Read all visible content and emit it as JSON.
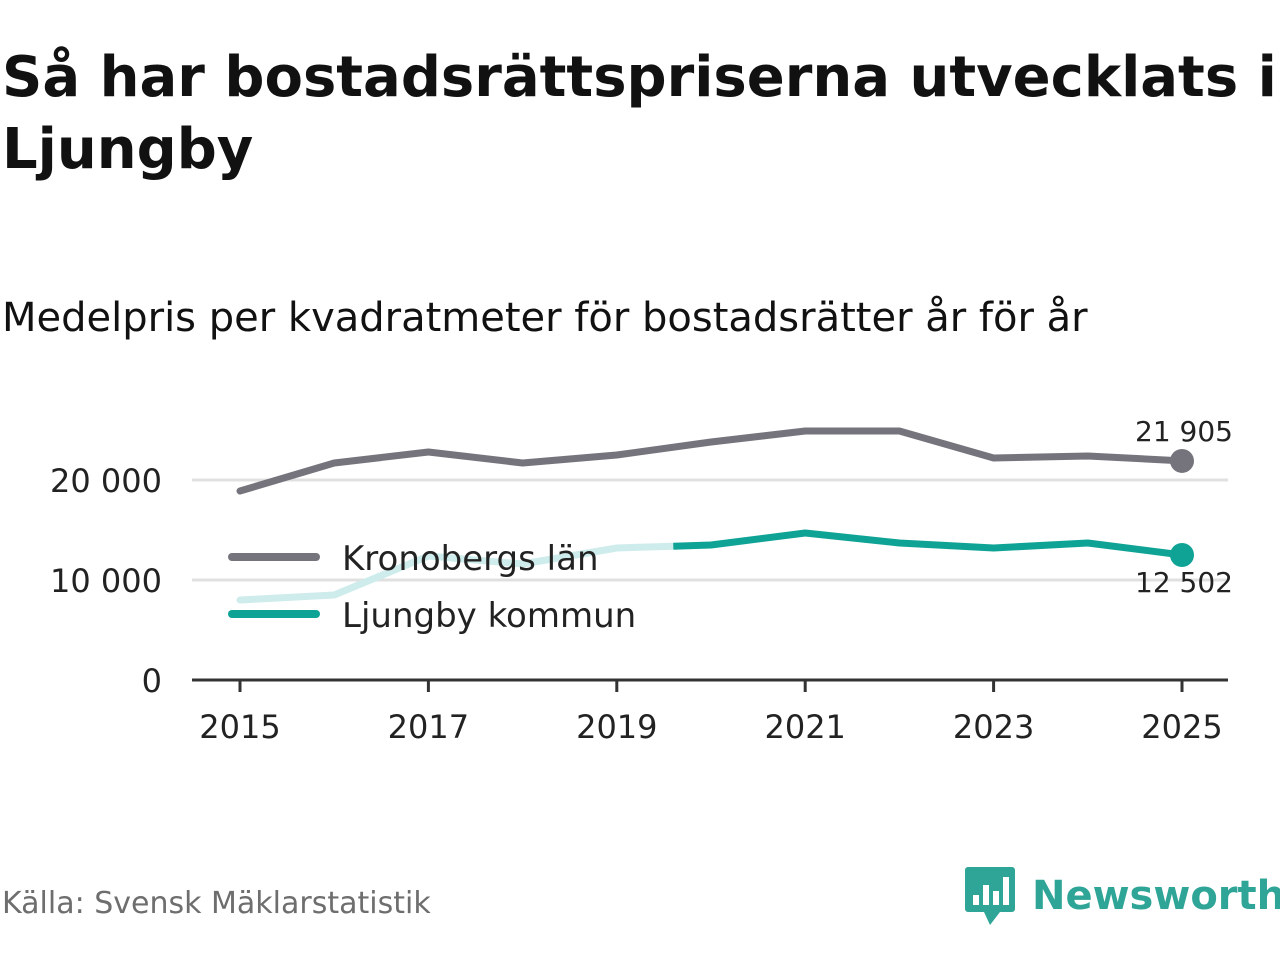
{
  "title": "Så har bostadsrättspriserna utvecklats i Ljungby",
  "subtitle": "Medelpris per kvadratmeter för bostadsrätter år för år",
  "source": "Källa: Svensk Mäklarstatistik",
  "brand": "Newsworthy",
  "colors": {
    "lan": "#75747d",
    "kommun": "#0fa396",
    "kommun_faded": "#cdeceb",
    "grid": "#e0e0e0",
    "axis": "#333333",
    "brand": "#2fa597"
  },
  "chart_data": {
    "type": "line",
    "title": "Så har bostadsrättspriserna utvecklats i Ljungby",
    "subtitle": "Medelpris per kvadratmeter för bostadsrätter år för år",
    "x": [
      2015,
      2016,
      2017,
      2018,
      2019,
      2020,
      2021,
      2022,
      2023,
      2024,
      2025
    ],
    "xticks": [
      2015,
      2017,
      2019,
      2021,
      2023,
      2025
    ],
    "xtick_labels": [
      "2015",
      "2017",
      "2019",
      "2021",
      "2023",
      "2025"
    ],
    "ylim": [
      0,
      27000
    ],
    "yticks": [
      0,
      10000,
      20000
    ],
    "ytick_labels": [
      "0",
      "10 000",
      "20 000"
    ],
    "grid": true,
    "legend_position": "center-left",
    "series": [
      {
        "name": "Kronobergs län",
        "color_key": "lan",
        "values": [
          18900,
          21700,
          22800,
          21700,
          22500,
          23800,
          24900,
          24900,
          22200,
          22400,
          21905
        ],
        "end_label": "21 905"
      },
      {
        "name": "Ljungby kommun",
        "color_key": "kommun",
        "values": [
          8000,
          8500,
          12400,
          11600,
          13200,
          13500,
          14700,
          13700,
          13200,
          13700,
          12502
        ],
        "faded_until": 2019.6,
        "end_label": "12 502"
      }
    ]
  }
}
